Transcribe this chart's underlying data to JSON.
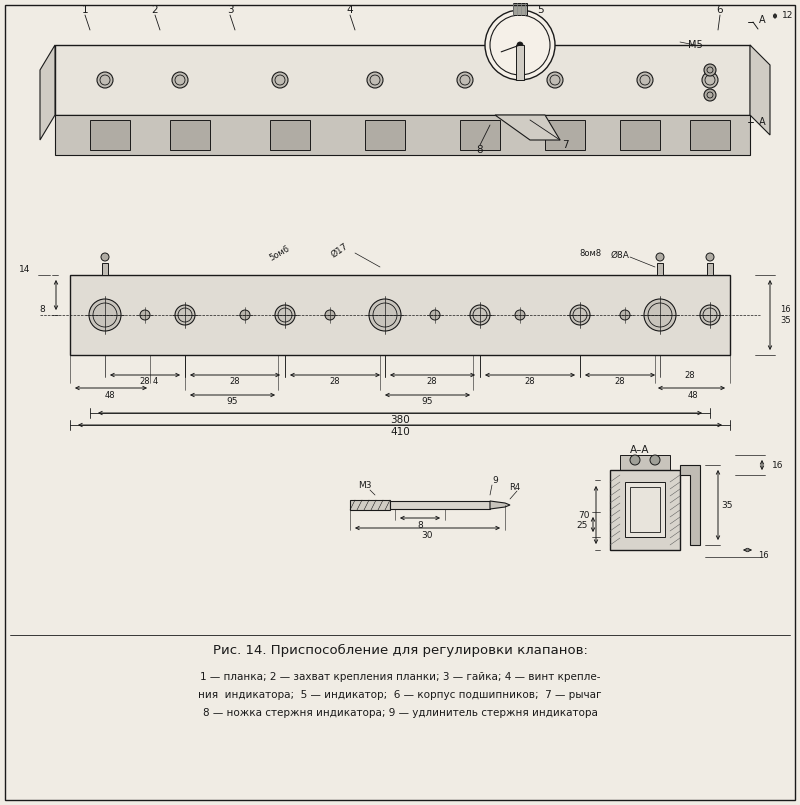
{
  "title": "Рис. 14. Приспособление для регулировки клапанов:",
  "caption_line1": "1 — планка; 2 — захват крепления планки; 3 — гайка; 4 — винт крепле-",
  "caption_line2": "ния  индикатора;  5 — индикатор;  6 — корпус подшипников;  7 — рычаг",
  "caption_line3": "8 — ножка стержня индикатора; 9 — удлинитель стержня индикатора",
  "bg_color": "#f0ece4",
  "line_color": "#1a1a1a",
  "fig_width": 8.0,
  "fig_height": 8.05
}
